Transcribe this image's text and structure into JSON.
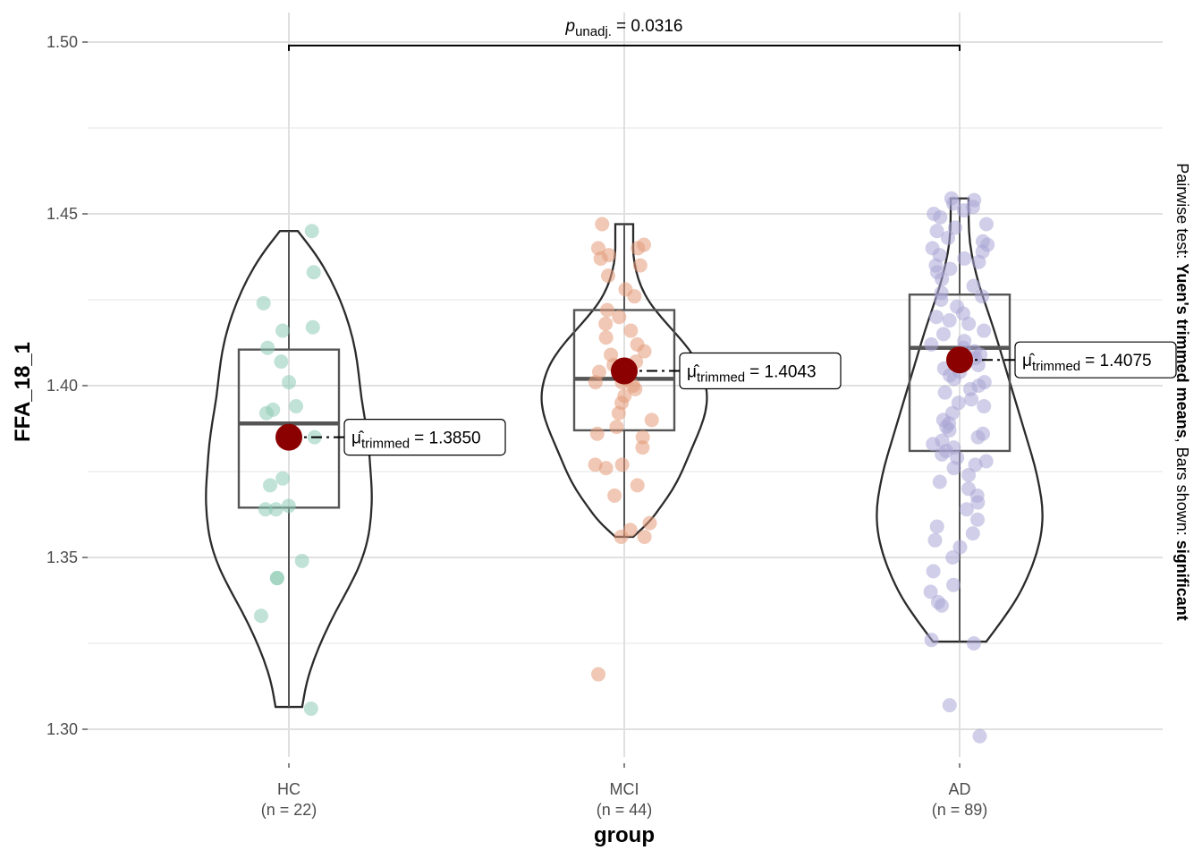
{
  "chart_data": {
    "type": "violin-box-scatter",
    "ylabel": "FFA_18_1",
    "xlabel": "group",
    "ylim": [
      1.29,
      1.505
    ],
    "y_ticks": [
      1.3,
      1.35,
      1.4,
      1.45,
      1.5
    ],
    "y_tick_labels": [
      "1.30",
      "1.35",
      "1.40",
      "1.45",
      "1.50"
    ],
    "grid": true,
    "groups": [
      {
        "name": "HC",
        "n_label": "(n = 22)",
        "color": "#8ecab4",
        "box": {
          "min": 1.3065,
          "q1": 1.3645,
          "median": 1.389,
          "q3": 1.4105,
          "max": 1.445
        },
        "trimmed_mean": 1.385,
        "mean_label": "= 1.3850",
        "violin_width": [
          0.0,
          0.33,
          0.5,
          0.63,
          0.73,
          0.8,
          0.84,
          0.87,
          0.92,
          0.96,
          0.98,
          1.0,
          0.99,
          0.95,
          0.86,
          0.72,
          0.56,
          0.42,
          0.3,
          0.21,
          0.16
        ],
        "points": [
          1.445,
          1.433,
          1.424,
          1.416,
          1.417,
          1.411,
          1.407,
          1.401,
          1.394,
          1.393,
          1.392,
          1.385,
          1.373,
          1.371,
          1.365,
          1.364,
          1.364,
          1.349,
          1.344,
          1.344,
          1.333,
          1.306
        ]
      },
      {
        "name": "MCI",
        "n_label": "(n = 44)",
        "color": "#e49a78",
        "box": {
          "min": 1.356,
          "q1": 1.387,
          "median": 1.402,
          "q3": 1.422,
          "max": 1.447
        },
        "trimmed_mean": 1.4043,
        "mean_label": "= 1.4043",
        "violin_width": [
          0.0,
          0.05,
          0.1,
          0.14,
          0.2,
          0.3,
          0.45,
          0.62,
          0.78,
          0.9,
          0.97,
          1.0,
          0.98,
          0.92,
          0.84,
          0.76,
          0.68,
          0.58,
          0.45,
          0.31,
          0.06
        ],
        "points": [
          1.447,
          1.441,
          1.44,
          1.44,
          1.438,
          1.437,
          1.435,
          1.432,
          1.428,
          1.426,
          1.422,
          1.42,
          1.418,
          1.416,
          1.414,
          1.412,
          1.41,
          1.409,
          1.407,
          1.406,
          1.404,
          1.402,
          1.401,
          1.401,
          1.4,
          1.399,
          1.397,
          1.395,
          1.392,
          1.39,
          1.388,
          1.386,
          1.385,
          1.382,
          1.377,
          1.377,
          1.376,
          1.371,
          1.368,
          1.36,
          1.358,
          1.356,
          1.356,
          1.316
        ]
      },
      {
        "name": "AD",
        "n_label": "(n = 89)",
        "color": "#a9a5d6",
        "box": {
          "min": 1.3255,
          "q1": 1.381,
          "median": 1.411,
          "q3": 1.4265,
          "max": 1.4545
        },
        "trimmed_mean": 1.4075,
        "mean_label": "= 1.4075",
        "violin_width": [
          0.0,
          0.08,
          0.12,
          0.17,
          0.24,
          0.33,
          0.42,
          0.5,
          0.58,
          0.66,
          0.74,
          0.82,
          0.9,
          0.96,
          1.0,
          0.99,
          0.93,
          0.83,
          0.7,
          0.52,
          0.32
        ],
        "points": [
          1.4545,
          1.454,
          1.453,
          1.452,
          1.451,
          1.45,
          1.449,
          1.447,
          1.446,
          1.445,
          1.443,
          1.442,
          1.441,
          1.44,
          1.439,
          1.438,
          1.437,
          1.436,
          1.435,
          1.434,
          1.433,
          1.431,
          1.429,
          1.427,
          1.426,
          1.425,
          1.423,
          1.421,
          1.42,
          1.419,
          1.418,
          1.416,
          1.415,
          1.413,
          1.412,
          1.411,
          1.41,
          1.409,
          1.408,
          1.407,
          1.406,
          1.405,
          1.404,
          1.403,
          1.402,
          1.401,
          1.4,
          1.399,
          1.398,
          1.396,
          1.395,
          1.394,
          1.392,
          1.39,
          1.389,
          1.388,
          1.387,
          1.386,
          1.385,
          1.384,
          1.383,
          1.382,
          1.381,
          1.38,
          1.379,
          1.378,
          1.377,
          1.376,
          1.374,
          1.372,
          1.37,
          1.368,
          1.366,
          1.364,
          1.361,
          1.359,
          1.357,
          1.355,
          1.353,
          1.35,
          1.346,
          1.342,
          1.34,
          1.337,
          1.336,
          1.326,
          1.325,
          1.307,
          1.298
        ]
      }
    ],
    "comparison": {
      "from": "HC",
      "to": "AD",
      "y": 1.499,
      "p_prefix": "p",
      "p_subscript": "unadj.",
      "p_value": "= 0.0316"
    },
    "mean_symbol": "μ̂",
    "mean_subscript": "trimmed",
    "caption": {
      "prefix": "Pairwise test: ",
      "bold1": "Yuen's trimmed means",
      "middle": ", Bars shown: ",
      "bold2": "significant"
    }
  }
}
